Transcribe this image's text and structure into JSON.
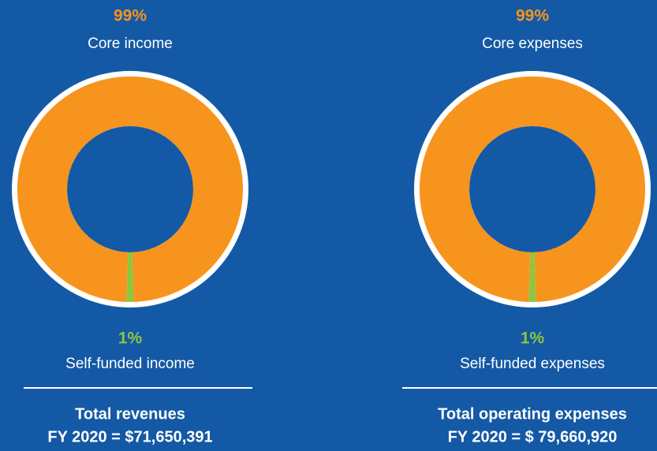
{
  "chart_data": [
    {
      "type": "donut",
      "categories": [
        "Core income",
        "Self-funded income"
      ],
      "values": [
        99,
        1
      ],
      "value_labels": [
        "99%",
        "1%"
      ],
      "colors": [
        "#f7941d",
        "#8dc63f"
      ],
      "footer": [
        "Total revenues",
        "FY 2020 =  $71,650,391"
      ]
    },
    {
      "type": "donut",
      "categories": [
        "Core expenses",
        "Self-funded expenses"
      ],
      "values": [
        99,
        1
      ],
      "value_labels": [
        "99%",
        "1%"
      ],
      "colors": [
        "#f7941d",
        "#8dc63f"
      ],
      "footer": [
        "Total operating expenses",
        "FY 2020 = $ 79,660,920"
      ]
    }
  ]
}
